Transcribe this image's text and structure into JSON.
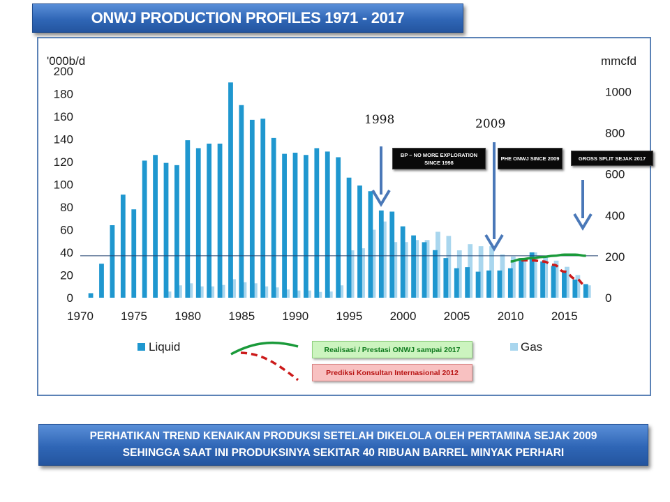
{
  "title": "ONWJ PRODUCTION PROFILES 1971 - 2017",
  "bottom_banner": {
    "line1": "PERHATIKAN TREND KENAIKAN PRODUKSI SETELAH DIKELOLA OLEH PERTAMINA SEJAK 2009",
    "line2": "SEHINGGA SAAT INI PRODUKSINYA SEKITAR 40 RIBUAN BARREL MINYAK PERHARI"
  },
  "annotations": {
    "year_1998": "1998",
    "year_2009": "2009",
    "box_bp": "BP – NO MORE EXPLORATION SINCE 1998",
    "box_phe": "PHE ONWJ SINCE 2009",
    "box_gross": "GROSS SPLIT SEJAK 2017"
  },
  "legend": {
    "liquid": "Liquid",
    "gas": "Gas",
    "realisasi": "Realisasi  / Prestasi ONWJ sampai 2017",
    "prediksi": "Prediksi Konsultan Internasional 2012"
  },
  "colors": {
    "liquid": "#1f97cf",
    "gas": "#a9d6ee",
    "realisasi": "#1a9a3a",
    "prediksi": "#cc1a1a",
    "arrow": "#4a78b8",
    "banner": "#2f66b6"
  },
  "chart_data": {
    "type": "bar",
    "xlabel": "",
    "ylabel_left": "'000b/d",
    "ylabel_right": "mmcfd",
    "ylim_left": [
      0,
      200
    ],
    "ylim_right": [
      0,
      1100
    ],
    "left_ticks": [
      0,
      20,
      40,
      60,
      80,
      100,
      120,
      140,
      160,
      180,
      200
    ],
    "right_ticks": [
      0,
      200,
      400,
      600,
      800,
      1000
    ],
    "x_ticks": [
      1970,
      1975,
      1980,
      1985,
      1990,
      1995,
      2000,
      2005,
      2010,
      2015
    ],
    "reference_line_left": 37,
    "series": [
      {
        "name": "Liquid",
        "axis": "left",
        "x": [
          1971,
          1972,
          1973,
          1974,
          1975,
          1976,
          1977,
          1978,
          1979,
          1980,
          1981,
          1982,
          1983,
          1984,
          1985,
          1986,
          1987,
          1988,
          1989,
          1990,
          1991,
          1992,
          1993,
          1994,
          1995,
          1996,
          1997,
          1998,
          1999,
          2000,
          2001,
          2002,
          2003,
          2004,
          2005,
          2006,
          2007,
          2008,
          2009,
          2010,
          2011,
          2012,
          2013,
          2014,
          2015,
          2016,
          2017
        ],
        "values": [
          4,
          30,
          64,
          91,
          78,
          121,
          126,
          119,
          117,
          139,
          132,
          136,
          136,
          190,
          170,
          157,
          158,
          141,
          127,
          128,
          126,
          132,
          129,
          124,
          106,
          99,
          94,
          77,
          76,
          63,
          55,
          49,
          42,
          35,
          26,
          27,
          23,
          24,
          24,
          26,
          35,
          40,
          32,
          28,
          24,
          16,
          12
        ]
      },
      {
        "name": "Gas",
        "axis": "right",
        "x": [
          1978,
          1979,
          1980,
          1981,
          1982,
          1983,
          1984,
          1985,
          1986,
          1987,
          1988,
          1989,
          1990,
          1991,
          1992,
          1993,
          1994,
          1995,
          1996,
          1997,
          1998,
          1999,
          2000,
          2001,
          2002,
          2003,
          2004,
          2005,
          2006,
          2007,
          2008,
          2009,
          2010,
          2011,
          2012,
          2013,
          2014,
          2015,
          2016,
          2017
        ],
        "values": [
          30,
          60,
          70,
          55,
          55,
          62,
          90,
          75,
          70,
          55,
          50,
          40,
          35,
          35,
          28,
          30,
          60,
          230,
          240,
          330,
          370,
          270,
          270,
          280,
          280,
          320,
          300,
          230,
          260,
          250,
          250,
          210,
          200,
          190,
          220,
          200,
          180,
          150,
          110,
          60
        ]
      },
      {
        "name": "Realisasi  / Prestasi ONWJ sampai 2017",
        "axis": "left",
        "style": "line",
        "x": [
          2010,
          2011,
          2012,
          2013,
          2014,
          2015,
          2016,
          2017
        ],
        "values": [
          32,
          34,
          35,
          36,
          37,
          38,
          38,
          37
        ]
      },
      {
        "name": "Prediksi Konsultan Internasional 2012",
        "axis": "left",
        "style": "dashed-line",
        "x": [
          2011,
          2012,
          2013,
          2014,
          2015,
          2016,
          2017
        ],
        "values": [
          33,
          33,
          32,
          29,
          23,
          17,
          11
        ]
      }
    ]
  }
}
